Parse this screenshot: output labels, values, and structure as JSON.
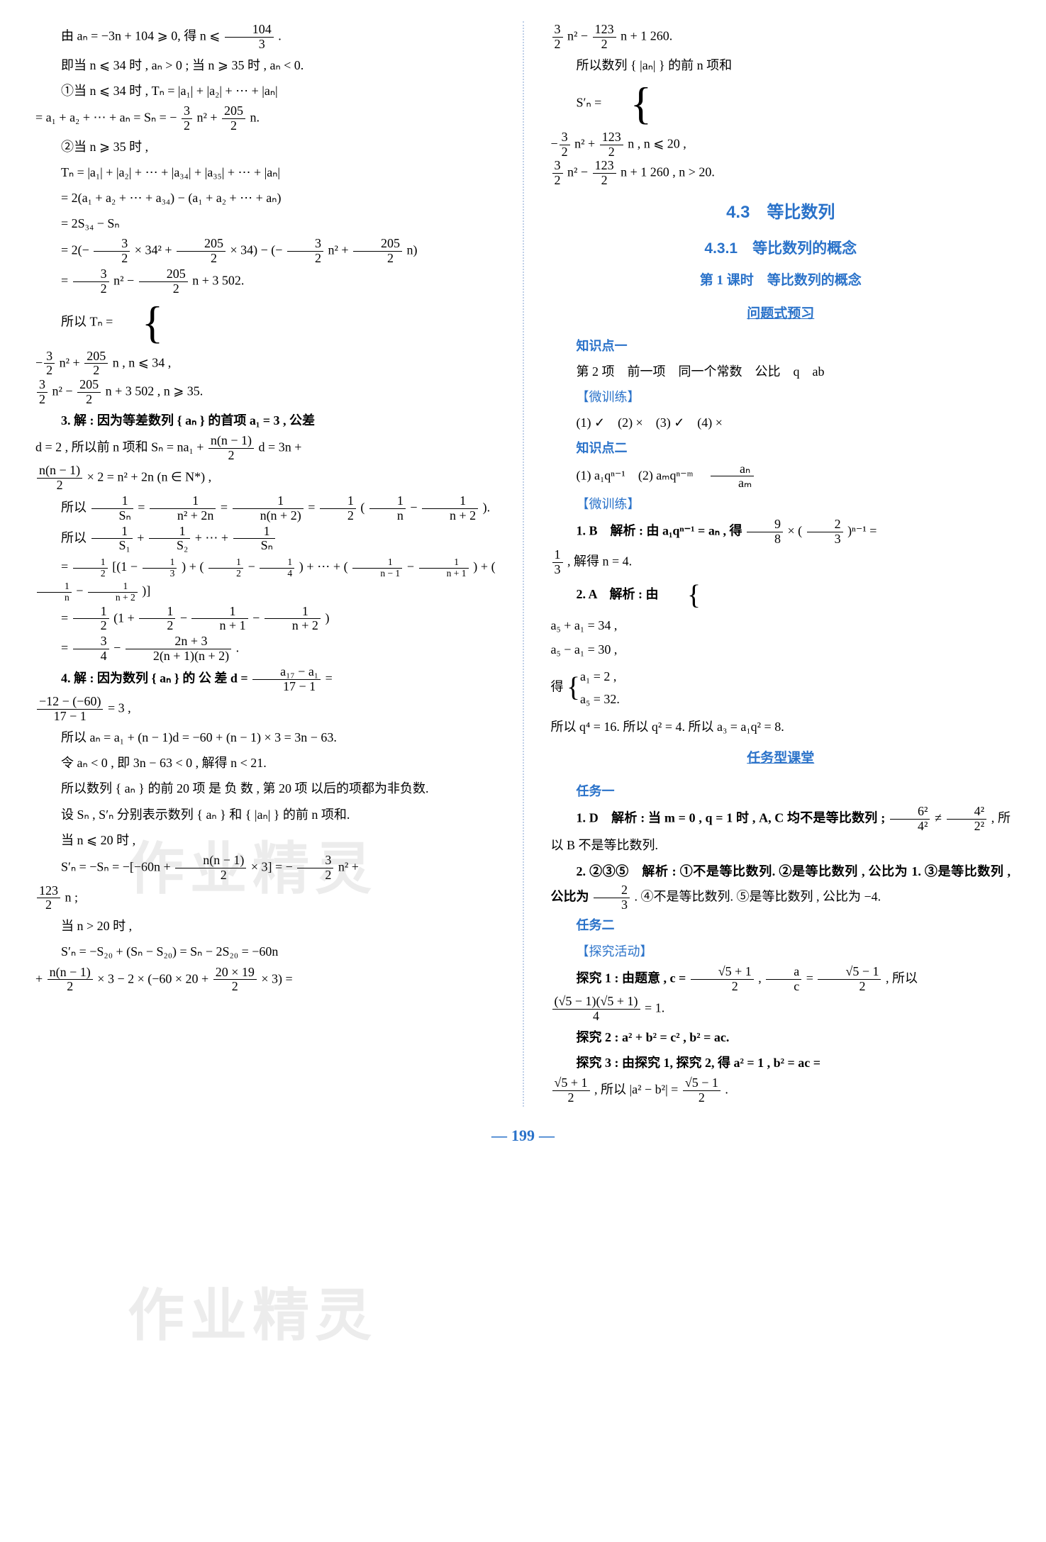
{
  "watermark": "作业精灵",
  "page_number": "199",
  "left": {
    "p1": "由 aₙ = −3n + 104 ⩾ 0, 得 n ⩽ ",
    "frac1_num": "104",
    "frac1_den": "3",
    "p1_end": ".",
    "p2": "即当 n ⩽ 34 时 , aₙ > 0 ; 当 n ⩾ 35 时 , aₙ < 0.",
    "p3": "①当 n ⩽ 34 时 , Tₙ = |a₁| + |a₂| + ⋯ + |aₙ|",
    "p4": "= a₁ + a₂ + ⋯ + aₙ = Sₙ = −",
    "frac2_num": "3",
    "frac2_den": "2",
    "p4_mid": " n² + ",
    "frac3_num": "205",
    "frac3_den": "2",
    "p4_end": " n.",
    "p5": "②当 n ⩾ 35 时 ,",
    "p6": "Tₙ = |a₁| + |a₂| + ⋯ + |a₃₄| + |a₃₅| + ⋯ + |aₙ|",
    "p7": "= 2(a₁ + a₂ + ⋯ + a₃₄) − (a₁ + a₂ + ⋯ + aₙ)",
    "p8": "= 2S₃₄ − Sₙ",
    "p9a": "= 2(−",
    "frac4_num": "3",
    "frac4_den": "2",
    "p9b": " × 34² + ",
    "frac5_num": "205",
    "frac5_den": "2",
    "p9c": " × 34) − (−",
    "frac6_num": "3",
    "frac6_den": "2",
    "p9d": " n² + ",
    "frac7_num": "205",
    "frac7_den": "2",
    "p9e": " n)",
    "p10a": "= ",
    "frac8_num": "3",
    "frac8_den": "2",
    "p10b": " n² − ",
    "frac9_num": "205",
    "frac9_den": "2",
    "p10c": " n + 3 502.",
    "p11": "所以 Tₙ =",
    "case1a_num": "3",
    "case1a_den": "2",
    "case1b_num": "205",
    "case1b_den": "2",
    "case1_end": " n , n ⩽ 34 ,",
    "case2a_num": "3",
    "case2a_den": "2",
    "case2b_num": "205",
    "case2b_den": "2",
    "case2_end": " n + 3 502 , n ⩾ 35.",
    "p12": "3. 解 : 因为等差数列 { aₙ } 的首项 a₁ = 3 , 公差",
    "p13a": "d = 2 , 所以前 n 项和 Sₙ = na₁ + ",
    "frac10_num": "n(n − 1)",
    "frac10_den": "2",
    "p13b": " d = 3n +",
    "p14a_num": "n(n − 1)",
    "p14a_den": "2",
    "p14b": " × 2 = n² + 2n (n ∈ N*) ,",
    "p15a": "所以 ",
    "frac11_num": "1",
    "frac11_den": "Sₙ",
    "p15b": " = ",
    "frac12_num": "1",
    "frac12_den": "n² + 2n",
    "p15c": " = ",
    "frac13_num": "1",
    "frac13_den": "n(n + 2)",
    "p15d": " = ",
    "frac14_num": "1",
    "frac14_den": "2",
    "p15e": " (",
    "frac15_num": "1",
    "frac15_den": "n",
    "p15f": " − ",
    "frac16_num": "1",
    "frac16_den": "n + 2",
    "p15g": ").",
    "p16a": "所以 ",
    "frac17_num": "1",
    "frac17_den": "S₁",
    "p16b": " + ",
    "frac18_num": "1",
    "frac18_den": "S₂",
    "p16c": " + ⋯ + ",
    "frac19_num": "1",
    "frac19_den": "Sₙ",
    "p17a": "= ",
    "frac20_num": "1",
    "frac20_den": "2",
    "p17b": " [(1 − ",
    "p17b_frac1n": "1",
    "p17b_frac1d": "3",
    "p17c": ") + (",
    "p17c_frac1n": "1",
    "p17c_frac1d": "2",
    "p17d": " − ",
    "p17d_frac1n": "1",
    "p17d_frac1d": "4",
    "p17e": ") + ⋯ + (",
    "p17e_frac1n": "1",
    "p17e_frac1d": "n − 1",
    "p17f": " − ",
    "p17f_frac1n": "1",
    "p17f_frac1d": "n + 1",
    "p17g": ") + (",
    "p17g_frac1n": "1",
    "p17g_frac1d": "n",
    "p17h": " − ",
    "p17h_frac1n": "1",
    "p17h_frac1d": "n + 2",
    "p17i": ")]",
    "p18a": "= ",
    "frac21_num": "1",
    "frac21_den": "2",
    "p18b": " (1 + ",
    "frac22_num": "1",
    "frac22_den": "2",
    "p18c": " − ",
    "frac23_num": "1",
    "frac23_den": "n + 1",
    "p18d": " − ",
    "frac24_num": "1",
    "frac24_den": "n + 2",
    "p18e": ")",
    "p19a": "= ",
    "frac25_num": "3",
    "frac25_den": "4",
    "p19b": " − ",
    "frac26_num": "2n + 3",
    "frac26_den": "2(n + 1)(n + 2)",
    "p19c": ".",
    "p20a": "4. 解 : 因为数列 { aₙ } 的 公 差 d = ",
    "frac27_num": "a₁₇ − a₁",
    "frac27_den": "17 − 1",
    "p20b": " =",
    "p21_num": "−12 − (−60)",
    "p21_den": "17 − 1",
    "p21_end": " = 3 ,",
    "p22": "所以 aₙ = a₁ + (n − 1)d = −60 + (n − 1) × 3 = 3n − 63.",
    "p23": "令 aₙ < 0 , 即 3n − 63 < 0 , 解得 n < 21.",
    "p24": "所以数列 { aₙ } 的前 20 项 是 负 数 , 第 20 项 以后的项都为非负数.",
    "p25": "设 Sₙ , S′ₙ 分别表示数列 { aₙ } 和 { |aₙ| } 的前 n 项和.",
    "p26": "当 n ⩽ 20 时 ,",
    "p27a": "S′ₙ = −Sₙ = −[−60n + ",
    "frac28_num": "n(n − 1)",
    "frac28_den": "2",
    "p27b": " × 3] = −",
    "frac29_num": "3",
    "frac29_den": "2",
    "p27c": " n² +",
    "p28_num": "123",
    "p28_den": "2",
    "p28_end": " n ;",
    "p29": "当 n > 20 时 ,",
    "p30": "S′ₙ = −S₂₀ + (Sₙ − S₂₀) = Sₙ − 2S₂₀ = −60n",
    "p31a": "+ ",
    "frac30_num": "n(n − 1)",
    "frac30_den": "2",
    "p31b": " × 3 − 2 × (−60 × 20 + ",
    "frac31_num": "20 × 19",
    "frac31_den": "2",
    "p31c": " × 3) ="
  },
  "right": {
    "p1a_num": "3",
    "p1a_den": "2",
    "p1b": " n² − ",
    "p1b_num": "123",
    "p1b_den": "2",
    "p1c": " n + 1 260.",
    "p2": "所以数列 { |aₙ| } 的前 n 项和",
    "p3": "S′ₙ =",
    "case1_pre": "−",
    "case1a_num": "3",
    "case1a_den": "2",
    "case1b": " n² + ",
    "case1c_num": "123",
    "case1c_den": "2",
    "case1d": " n , n ⩽ 20 ,",
    "case2a_num": "3",
    "case2a_den": "2",
    "case2b": " n² − ",
    "case2c_num": "123",
    "case2c_den": "2",
    "case2d": " n + 1 260 , n > 20.",
    "section": "4.3　等比数列",
    "subsection": "4.3.1　等比数列的概念",
    "lesson": "第 1 课时　等比数列的概念",
    "pretitle1": "问题式预习",
    "kp1": "知识点一",
    "kp1_ans": "第 2 项　前一项　同一个常数　公比　q　ab",
    "micro1": "【微训练】",
    "kp1_micro": "(1) ✓　(2) ×　(3) ✓　(4) ×",
    "kp2": "知识点二",
    "kp2_ans_a": "(1) a₁qⁿ⁻¹　(2) aₘqⁿ⁻ᵐ　",
    "kp2_frac_num": "aₙ",
    "kp2_frac_den": "aₘ",
    "micro2": "【微训练】",
    "q1a": "1. B　解析 : 由 a₁qⁿ⁻¹ = aₙ , 得 ",
    "q1_frac1_num": "9",
    "q1_frac1_den": "8",
    "q1b": " × (",
    "q1_frac2_num": "2",
    "q1_frac2_den": "3",
    "q1c": ")ⁿ⁻¹ =",
    "q1d_num": "1",
    "q1d_den": "3",
    "q1e": " , 解得 n = 4.",
    "q2a": "2. A　解析 : 由",
    "q2_case1": "a₅ + a₁ = 34 ,",
    "q2_case2": "a₅ − a₁ = 30 ,",
    "q2b": "得",
    "q2_case3": "a₁ = 2 ,",
    "q2_case4": "a₅ = 32.",
    "q2c": "所以 q⁴ = 16. 所以 q² = 4. 所以 a₃ = a₁q² = 8.",
    "pretitle2": "任务型课堂",
    "task1": "任务一",
    "t1_q1": "1. D　解析 : 当 m = 0 , q = 1 时 , A, C 均不是等比数列 ; ",
    "t1_q1_frac1_num": "6²",
    "t1_q1_frac1_den": "4²",
    "t1_q1_mid": " ≠ ",
    "t1_q1_frac2_num": "4²",
    "t1_q1_frac2_den": "2²",
    "t1_q1_end": " , 所以 B 不是等比数列.",
    "t1_q2a": "2. ②③⑤　解析 : ①不是等比数列. ②是等比数列 , 公比为 1. ③是等比数列 , 公比为 ",
    "t1_q2_frac_num": "2",
    "t1_q2_frac_den": "3",
    "t1_q2b": ". ④不是等比数列. ⑤是等比数列 , 公比为 −4.",
    "task2": "任务二",
    "explore": "【探究活动】",
    "ex1a": "探究 1 : 由题意 , c = ",
    "ex1_frac1_num": "√5 + 1",
    "ex1_frac1_den": "2",
    "ex1b": " , ",
    "ex1_frac2_num": "a",
    "ex1_frac2_den": "c",
    "ex1c": " = ",
    "ex1_frac3_num": "√5 − 1",
    "ex1_frac3_den": "2",
    "ex1d": " , 所以",
    "ex1e_num": "(√5 − 1)(√5 + 1)",
    "ex1e_den": "4",
    "ex1f": " = 1.",
    "ex2": "探究 2 : a² + b² = c² , b² = ac.",
    "ex3a": "探究 3 : 由探究 1, 探究 2, 得 a² = 1 , b² = ac =",
    "ex3_frac1_num": "√5 + 1",
    "ex3_frac1_den": "2",
    "ex3b": " , 所以 |a² − b²| = ",
    "ex3_frac2_num": "√5 − 1",
    "ex3_frac2_den": "2",
    "ex3c": "."
  }
}
